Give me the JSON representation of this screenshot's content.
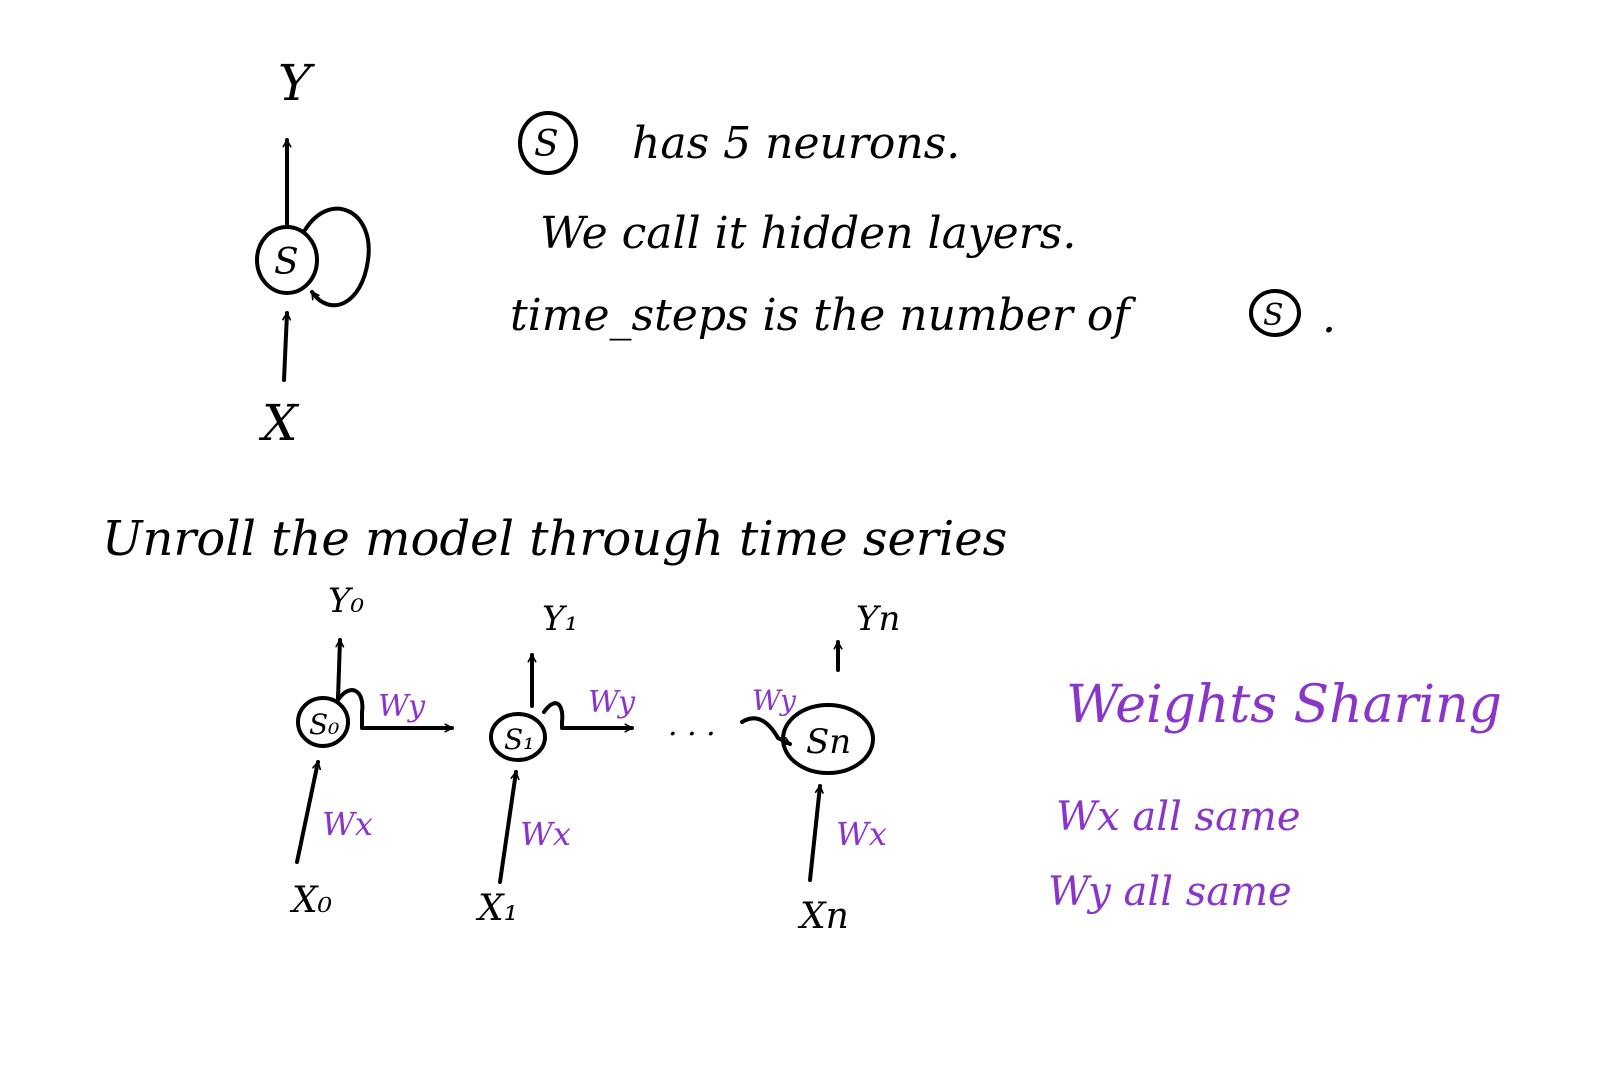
{
  "colors": {
    "ink": "#000000",
    "accent": "#8a35c9",
    "background": "#ffffff"
  },
  "folded": {
    "output_label": "Y",
    "node_label": "S",
    "input_label": "X"
  },
  "notes": {
    "line1_symbol": "S",
    "line1_text": "has 5 neurons.",
    "line2_text": "We call it hidden layers.",
    "line3_text": "time_steps is the number of",
    "line3_symbol": "S",
    "line3_end": "."
  },
  "unroll": {
    "heading": "Unroll the model through time series",
    "steps": [
      {
        "output": "Y₀",
        "node": "S₀",
        "input": "X₀",
        "wx": "Wx",
        "wy": "Wy"
      },
      {
        "output": "Y₁",
        "node": "S₁",
        "input": "X₁",
        "wx": "Wx",
        "wy": "Wy"
      },
      {
        "output": "Yn",
        "node": "Sn",
        "input": "Xn",
        "wx": "Wx",
        "wy_in": "Wy"
      }
    ],
    "ellipsis": "· · ·"
  },
  "sharing": {
    "title": "Weights Sharing",
    "line1": "Wx all same",
    "line2": "Wy all same"
  }
}
